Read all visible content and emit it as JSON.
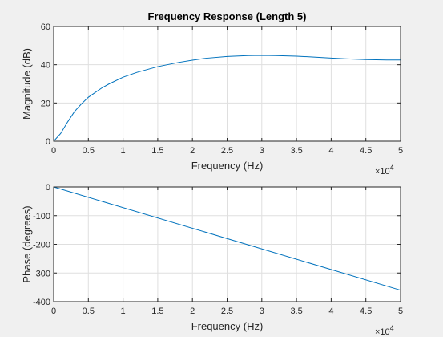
{
  "chart_data": [
    {
      "type": "line",
      "title": "Frequency Response (Length 5)",
      "xlabel": "Frequency (Hz)",
      "ylabel": "Magnitude (dB)",
      "x_exponent_label": "×10^4",
      "xlim": [
        0,
        50000
      ],
      "ylim": [
        0,
        60
      ],
      "x_ticks": [
        0,
        5000,
        10000,
        15000,
        20000,
        25000,
        30000,
        35000,
        40000,
        45000,
        50000
      ],
      "x_tick_labels": [
        "0",
        "0.5",
        "1",
        "1.5",
        "2",
        "2.5",
        "3",
        "3.5",
        "4",
        "4.5",
        "5"
      ],
      "y_ticks": [
        0,
        20,
        40,
        60
      ],
      "y_tick_labels": [
        "0",
        "20",
        "40",
        "60"
      ],
      "grid": true,
      "line_color": "#0072bd",
      "series": [
        {
          "x": [
            0,
            1000,
            2000,
            3000,
            4000,
            5000,
            6000,
            7000,
            8000,
            10000,
            12000,
            15000,
            18000,
            20000,
            22000,
            25000,
            28000,
            30000,
            32000,
            35000,
            38000,
            40000,
            42000,
            45000,
            48000,
            50000
          ],
          "y": [
            0,
            4,
            10,
            15.5,
            19.5,
            23,
            25.5,
            28,
            30,
            33.5,
            36,
            39,
            41.2,
            42.4,
            43.4,
            44.3,
            44.8,
            44.9,
            44.8,
            44.5,
            43.9,
            43.5,
            43.1,
            42.7,
            42.5,
            42.5
          ]
        }
      ]
    },
    {
      "type": "line",
      "title": "",
      "xlabel": "Frequency (Hz)",
      "ylabel": "Phase (degrees)",
      "x_exponent_label": "×10^4",
      "xlim": [
        0,
        50000
      ],
      "ylim": [
        -400,
        0
      ],
      "x_ticks": [
        0,
        5000,
        10000,
        15000,
        20000,
        25000,
        30000,
        35000,
        40000,
        45000,
        50000
      ],
      "x_tick_labels": [
        "0",
        "0.5",
        "1",
        "1.5",
        "2",
        "2.5",
        "3",
        "3.5",
        "4",
        "4.5",
        "5"
      ],
      "y_ticks": [
        -400,
        -300,
        -200,
        -100,
        0
      ],
      "y_tick_labels": [
        "-400",
        "-300",
        "-200",
        "-100",
        "0"
      ],
      "grid": true,
      "line_color": "#0072bd",
      "series": [
        {
          "x": [
            0,
            50000
          ],
          "y": [
            0,
            -360
          ]
        }
      ]
    }
  ]
}
